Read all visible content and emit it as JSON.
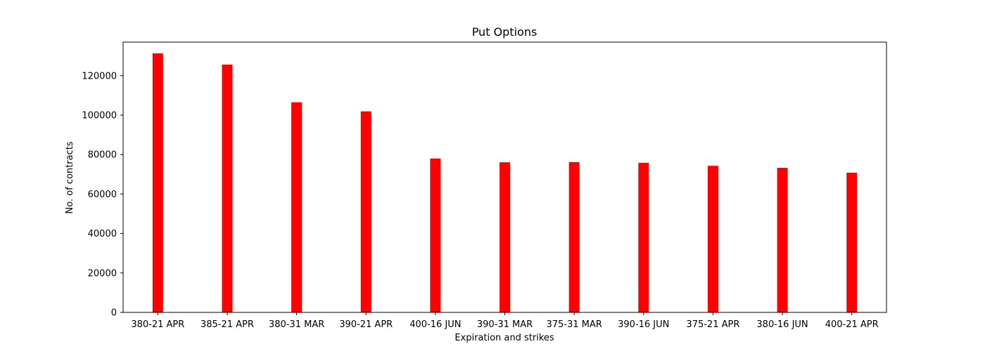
{
  "chart_data": {
    "type": "bar",
    "title": "Put Options",
    "xlabel": "Expiration and strikes",
    "ylabel": "No. of contracts",
    "categories": [
      "380-21 APR",
      "385-21 APR",
      "380-31 MAR",
      "390-21 APR",
      "400-16 JUN",
      "390-31 MAR",
      "375-31 MAR",
      "390-16 JUN",
      "375-21 APR",
      "380-16 JUN",
      "400-21 APR"
    ],
    "values": [
      131300,
      125600,
      106500,
      101900,
      78000,
      76100,
      76200,
      75800,
      74300,
      73300,
      70800
    ],
    "ylim": [
      0,
      137000
    ],
    "yticks": [
      0,
      20000,
      40000,
      60000,
      80000,
      100000,
      120000
    ],
    "bar_color": "#ff0000",
    "grid": false,
    "legend": "none"
  }
}
